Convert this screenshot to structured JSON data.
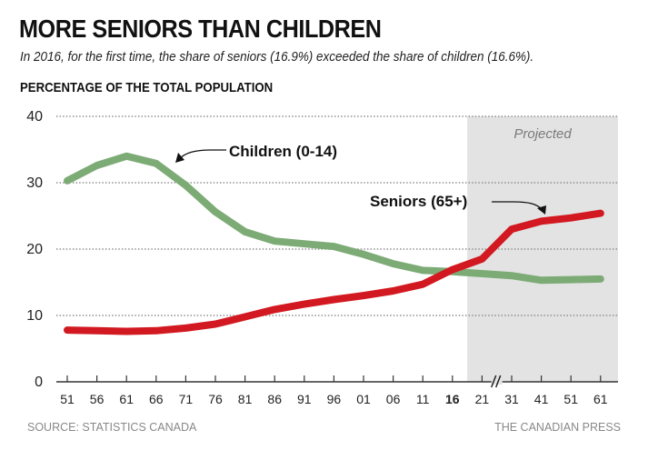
{
  "header": {
    "title": "MORE SENIORS THAN CHILDREN",
    "subtitle": "In 2016, for the first time, the share of seniors (16.9%) exceeded the share of children (16.6%).",
    "ylabel": "PERCENTAGE OF THE TOTAL POPULATION"
  },
  "footer": {
    "source": "SOURCE: STATISTICS CANADA",
    "credit": "THE CANADIAN PRESS"
  },
  "colors": {
    "children": "#7dab76",
    "seniors": "#d21820",
    "projected_shade": "#e3e3e3",
    "grid": "#8a8a8a"
  },
  "chart_data": {
    "type": "line",
    "title": "MORE SENIORS THAN CHILDREN",
    "xlabel": "",
    "ylabel": "PERCENTAGE OF THE TOTAL POPULATION",
    "ylim": [
      0,
      40
    ],
    "yticks": [
      0,
      10,
      20,
      30,
      40
    ],
    "grid": true,
    "categories": [
      "51",
      "56",
      "61",
      "66",
      "71",
      "76",
      "81",
      "86",
      "91",
      "96",
      "01",
      "06",
      "11",
      "16",
      "21",
      "31",
      "41",
      "51",
      "61"
    ],
    "highlighted_category": "16",
    "axis_break_between": [
      "21",
      "31"
    ],
    "projected_from": "21",
    "projected_label": "Projected",
    "series": [
      {
        "name": "Children (0-14)",
        "values": [
          30.3,
          32.6,
          34.0,
          32.9,
          29.6,
          25.6,
          22.6,
          21.2,
          20.8,
          20.4,
          19.2,
          17.8,
          16.8,
          16.6,
          16.3,
          16.0,
          15.3,
          15.4,
          15.5
        ]
      },
      {
        "name": "Seniors (65+)",
        "values": [
          7.8,
          7.7,
          7.6,
          7.7,
          8.1,
          8.7,
          9.8,
          10.9,
          11.7,
          12.4,
          13.0,
          13.7,
          14.7,
          16.9,
          18.5,
          23.0,
          24.2,
          24.7,
          25.4
        ]
      }
    ],
    "annotations": [
      {
        "text": "Children (0-14)",
        "series": "Children (0-14)"
      },
      {
        "text": "Seniors (65+)",
        "series": "Seniors (65+)"
      }
    ]
  }
}
